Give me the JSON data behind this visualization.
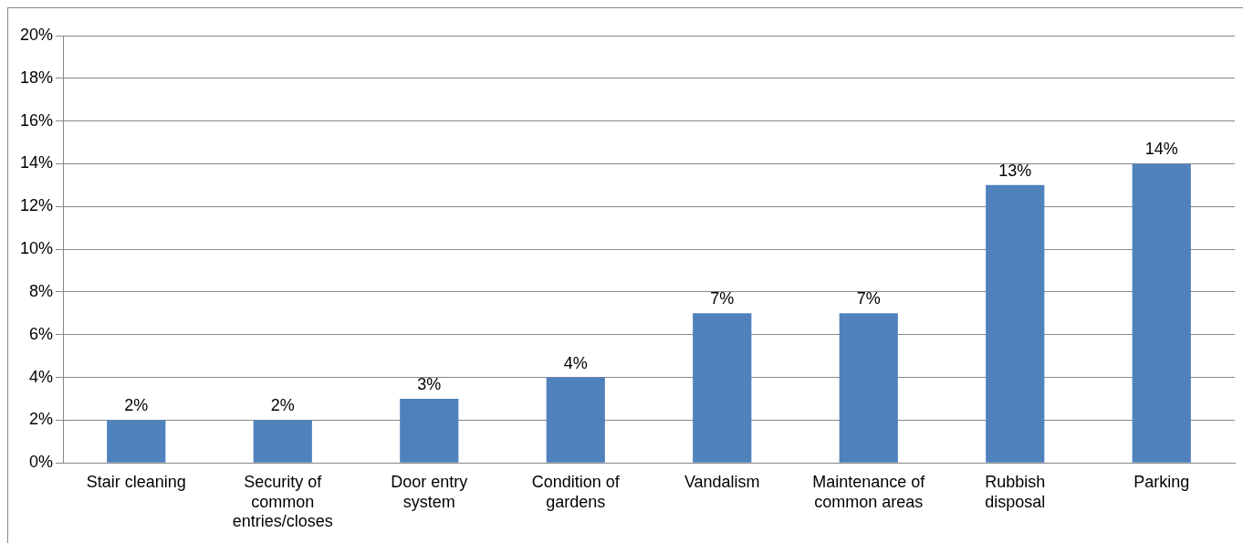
{
  "chart_data": {
    "type": "bar",
    "categories": [
      "Stair cleaning",
      "Security of common entries/closes",
      "Door entry system",
      "Condition of gardens",
      "Vandalism",
      "Maintenance of common areas",
      "Rubbish disposal",
      "Parking"
    ],
    "values": [
      2,
      2,
      3,
      4,
      7,
      7,
      13,
      14
    ],
    "value_labels": [
      "2%",
      "2%",
      "3%",
      "4%",
      "7%",
      "7%",
      "13%",
      "14%"
    ],
    "color": "#4f81bd",
    "ylim": [
      0,
      20
    ],
    "yticks": [
      {
        "value": 0,
        "label": "0%"
      },
      {
        "value": 2,
        "label": "2%"
      },
      {
        "value": 4,
        "label": "4%"
      },
      {
        "value": 6,
        "label": "6%"
      },
      {
        "value": 8,
        "label": "8%"
      },
      {
        "value": 10,
        "label": "10%"
      },
      {
        "value": 12,
        "label": "12%"
      },
      {
        "value": 14,
        "label": "14%"
      },
      {
        "value": 16,
        "label": "16%"
      },
      {
        "value": 18,
        "label": "18%"
      },
      {
        "value": 20,
        "label": "20%"
      }
    ],
    "grid": "y",
    "legend": false
  }
}
